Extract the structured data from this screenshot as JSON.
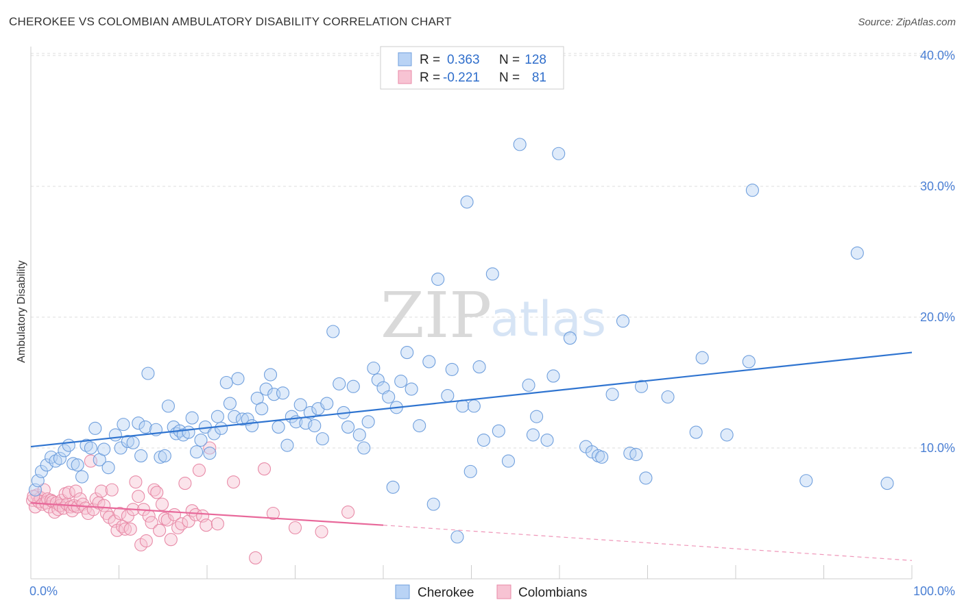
{
  "title": "CHEROKEE VS COLOMBIAN AMBULATORY DISABILITY CORRELATION CHART",
  "source": "Source: ZipAtlas.com",
  "watermark": {
    "zip": "ZIP",
    "atlas": "atlas"
  },
  "colors": {
    "cherokee_fill": "#b9d3f5",
    "cherokee_stroke": "#6f9fdd",
    "cherokee_line": "#2f74d0",
    "colombian_fill": "#f7c3d3",
    "colombian_stroke": "#e88aa7",
    "colombian_line": "#e8689a",
    "tick_text": "#4a7fd4",
    "grid": "#dddddd"
  },
  "legend": {
    "rows": [
      {
        "r_label": "R =",
        "r_value": "0.363",
        "n_label": "N =",
        "n_value": "128",
        "series": "cherokee"
      },
      {
        "r_label": "R =",
        "r_value": "-0.221",
        "n_label": "N =",
        "n_value": "81",
        "series": "colombian"
      }
    ]
  },
  "chart_data": {
    "type": "scatter",
    "title": "CHEROKEE VS COLOMBIAN AMBULATORY DISABILITY CORRELATION CHART",
    "xlabel": "",
    "ylabel": "Ambulatory Disability",
    "xlim": [
      0,
      100
    ],
    "ylim": [
      0,
      42
    ],
    "x_tick_labels": [
      "0.0%",
      "100.0%"
    ],
    "y_ticks": [
      10,
      20,
      30,
      40
    ],
    "y_tick_labels": [
      "10.0%",
      "20.0%",
      "30.0%",
      "40.0%"
    ],
    "grid": true,
    "legend_position": "top-center",
    "series": [
      {
        "name": "Cherokee",
        "r": 0.363,
        "n": 128,
        "trend": {
          "x": [
            0,
            100
          ],
          "y": [
            10.1,
            17.3
          ]
        },
        "points": [
          [
            0.5,
            6.8
          ],
          [
            0.8,
            7.5
          ],
          [
            1.2,
            8.2
          ],
          [
            1.8,
            8.7
          ],
          [
            2.3,
            9.3
          ],
          [
            2.8,
            9.0
          ],
          [
            3.3,
            9.2
          ],
          [
            3.8,
            9.8
          ],
          [
            4.3,
            10.2
          ],
          [
            4.8,
            8.8
          ],
          [
            5.3,
            8.7
          ],
          [
            5.8,
            7.8
          ],
          [
            6.3,
            10.2
          ],
          [
            6.8,
            10.0
          ],
          [
            7.3,
            11.5
          ],
          [
            7.8,
            9.1
          ],
          [
            8.3,
            9.9
          ],
          [
            8.8,
            8.5
          ],
          [
            9.6,
            11.0
          ],
          [
            10.2,
            10.0
          ],
          [
            10.5,
            11.8
          ],
          [
            11.0,
            10.5
          ],
          [
            11.6,
            10.4
          ],
          [
            12.2,
            11.9
          ],
          [
            12.5,
            9.4
          ],
          [
            13.0,
            11.6
          ],
          [
            13.3,
            15.7
          ],
          [
            14.2,
            11.4
          ],
          [
            14.7,
            9.3
          ],
          [
            15.2,
            9.4
          ],
          [
            15.6,
            13.2
          ],
          [
            16.2,
            11.6
          ],
          [
            16.5,
            11.1
          ],
          [
            16.9,
            11.3
          ],
          [
            17.3,
            11.0
          ],
          [
            17.9,
            11.2
          ],
          [
            18.3,
            12.3
          ],
          [
            18.8,
            9.7
          ],
          [
            19.3,
            10.6
          ],
          [
            19.8,
            11.6
          ],
          [
            20.3,
            9.6
          ],
          [
            20.8,
            11.1
          ],
          [
            21.2,
            12.4
          ],
          [
            21.6,
            11.5
          ],
          [
            22.2,
            15.0
          ],
          [
            22.6,
            13.4
          ],
          [
            23.1,
            12.4
          ],
          [
            23.5,
            15.3
          ],
          [
            24.0,
            12.2
          ],
          [
            24.6,
            12.2
          ],
          [
            25.1,
            11.7
          ],
          [
            25.7,
            13.8
          ],
          [
            26.2,
            13.0
          ],
          [
            26.7,
            14.5
          ],
          [
            27.2,
            15.6
          ],
          [
            27.6,
            14.1
          ],
          [
            28.1,
            11.6
          ],
          [
            28.6,
            14.2
          ],
          [
            29.1,
            10.2
          ],
          [
            29.6,
            12.4
          ],
          [
            30.1,
            12.0
          ],
          [
            30.6,
            13.3
          ],
          [
            31.2,
            11.9
          ],
          [
            31.7,
            12.7
          ],
          [
            32.2,
            11.7
          ],
          [
            32.6,
            13.0
          ],
          [
            33.1,
            10.7
          ],
          [
            33.6,
            13.4
          ],
          [
            34.3,
            18.9
          ],
          [
            35.0,
            14.9
          ],
          [
            35.5,
            12.7
          ],
          [
            36.0,
            11.6
          ],
          [
            36.6,
            14.7
          ],
          [
            37.3,
            11.0
          ],
          [
            37.8,
            10.0
          ],
          [
            38.3,
            12.0
          ],
          [
            38.9,
            16.1
          ],
          [
            39.4,
            15.2
          ],
          [
            40.0,
            14.6
          ],
          [
            40.6,
            13.9
          ],
          [
            41.1,
            7.0
          ],
          [
            41.5,
            13.1
          ],
          [
            42.0,
            15.1
          ],
          [
            42.7,
            17.3
          ],
          [
            43.2,
            14.5
          ],
          [
            44.1,
            11.7
          ],
          [
            45.2,
            16.6
          ],
          [
            45.7,
            5.7
          ],
          [
            46.2,
            22.9
          ],
          [
            47.3,
            14.0
          ],
          [
            47.8,
            16.0
          ],
          [
            48.4,
            3.2
          ],
          [
            49.0,
            13.2
          ],
          [
            49.5,
            28.8
          ],
          [
            49.9,
            8.2
          ],
          [
            50.3,
            13.2
          ],
          [
            50.9,
            16.2
          ],
          [
            51.4,
            10.6
          ],
          [
            52.4,
            23.3
          ],
          [
            53.1,
            11.3
          ],
          [
            54.2,
            9.0
          ],
          [
            55.5,
            33.2
          ],
          [
            56.5,
            14.8
          ],
          [
            57.0,
            11.0
          ],
          [
            57.4,
            12.4
          ],
          [
            58.6,
            10.6
          ],
          [
            59.3,
            15.5
          ],
          [
            59.9,
            32.5
          ],
          [
            61.2,
            18.4
          ],
          [
            63.0,
            10.1
          ],
          [
            63.7,
            9.7
          ],
          [
            64.4,
            9.4
          ],
          [
            64.8,
            9.3
          ],
          [
            66.0,
            14.1
          ],
          [
            67.2,
            19.7
          ],
          [
            68.0,
            9.6
          ],
          [
            68.7,
            9.5
          ],
          [
            69.3,
            14.7
          ],
          [
            69.8,
            7.7
          ],
          [
            72.3,
            13.9
          ],
          [
            75.5,
            11.2
          ],
          [
            76.2,
            16.9
          ],
          [
            79.0,
            11.0
          ],
          [
            81.5,
            16.6
          ],
          [
            81.9,
            29.7
          ],
          [
            88.0,
            7.5
          ],
          [
            93.8,
            24.9
          ],
          [
            97.2,
            7.3
          ]
        ]
      },
      {
        "name": "Colombians",
        "r": -0.221,
        "n": 81,
        "trend": {
          "x": [
            0,
            40
          ],
          "y": [
            5.8,
            4.1
          ],
          "dashed_extension": {
            "x": [
              40,
              100
            ],
            "y": [
              4.1,
              1.4
            ]
          }
        },
        "points": [
          [
            0.2,
            6.0
          ],
          [
            0.5,
            5.5
          ],
          [
            0.7,
            6.4
          ],
          [
            0.9,
            5.9
          ],
          [
            1.1,
            6.2
          ],
          [
            1.3,
            5.7
          ],
          [
            1.5,
            6.8
          ],
          [
            1.7,
            5.8
          ],
          [
            1.9,
            6.1
          ],
          [
            2.1,
            5.5
          ],
          [
            2.3,
            6.0
          ],
          [
            2.5,
            5.9
          ],
          [
            2.7,
            5.1
          ],
          [
            2.9,
            5.8
          ],
          [
            3.1,
            5.3
          ],
          [
            3.3,
            5.6
          ],
          [
            3.5,
            6.0
          ],
          [
            3.7,
            5.4
          ],
          [
            3.9,
            6.5
          ],
          [
            4.1,
            5.7
          ],
          [
            4.3,
            6.6
          ],
          [
            4.5,
            5.5
          ],
          [
            4.7,
            5.2
          ],
          [
            4.9,
            5.6
          ],
          [
            5.1,
            6.7
          ],
          [
            5.3,
            5.5
          ],
          [
            5.6,
            6.1
          ],
          [
            5.9,
            5.7
          ],
          [
            6.2,
            5.4
          ],
          [
            6.5,
            5.0
          ],
          [
            6.8,
            9.0
          ],
          [
            7.1,
            5.3
          ],
          [
            7.4,
            6.1
          ],
          [
            7.7,
            5.8
          ],
          [
            8.0,
            6.7
          ],
          [
            8.3,
            5.6
          ],
          [
            8.6,
            5.0
          ],
          [
            8.9,
            4.7
          ],
          [
            9.2,
            6.8
          ],
          [
            9.5,
            4.4
          ],
          [
            9.8,
            3.7
          ],
          [
            10.1,
            5.0
          ],
          [
            10.4,
            4.0
          ],
          [
            10.7,
            3.8
          ],
          [
            11.0,
            4.8
          ],
          [
            11.3,
            3.8
          ],
          [
            11.6,
            5.3
          ],
          [
            11.9,
            7.4
          ],
          [
            12.2,
            6.3
          ],
          [
            12.5,
            2.6
          ],
          [
            12.8,
            5.3
          ],
          [
            13.1,
            2.9
          ],
          [
            13.4,
            4.8
          ],
          [
            13.7,
            4.3
          ],
          [
            14.0,
            6.8
          ],
          [
            14.3,
            6.6
          ],
          [
            14.6,
            3.7
          ],
          [
            14.9,
            5.7
          ],
          [
            15.2,
            4.6
          ],
          [
            15.5,
            4.5
          ],
          [
            15.9,
            3.0
          ],
          [
            16.3,
            4.9
          ],
          [
            16.7,
            3.9
          ],
          [
            17.1,
            4.2
          ],
          [
            17.5,
            7.3
          ],
          [
            17.9,
            4.4
          ],
          [
            18.3,
            5.2
          ],
          [
            18.7,
            4.9
          ],
          [
            19.1,
            8.3
          ],
          [
            19.5,
            4.8
          ],
          [
            19.9,
            4.1
          ],
          [
            20.3,
            10.0
          ],
          [
            21.2,
            4.2
          ],
          [
            23.0,
            7.4
          ],
          [
            25.5,
            1.6
          ],
          [
            26.5,
            8.4
          ],
          [
            27.5,
            5.0
          ],
          [
            30.0,
            3.9
          ],
          [
            33.0,
            3.6
          ],
          [
            36.0,
            5.1
          ],
          [
            0.3,
            6.3
          ]
        ]
      }
    ]
  },
  "bottom_legend": {
    "items": [
      {
        "label": "Cherokee",
        "series": "cherokee"
      },
      {
        "label": "Colombians",
        "series": "colombian"
      }
    ]
  }
}
